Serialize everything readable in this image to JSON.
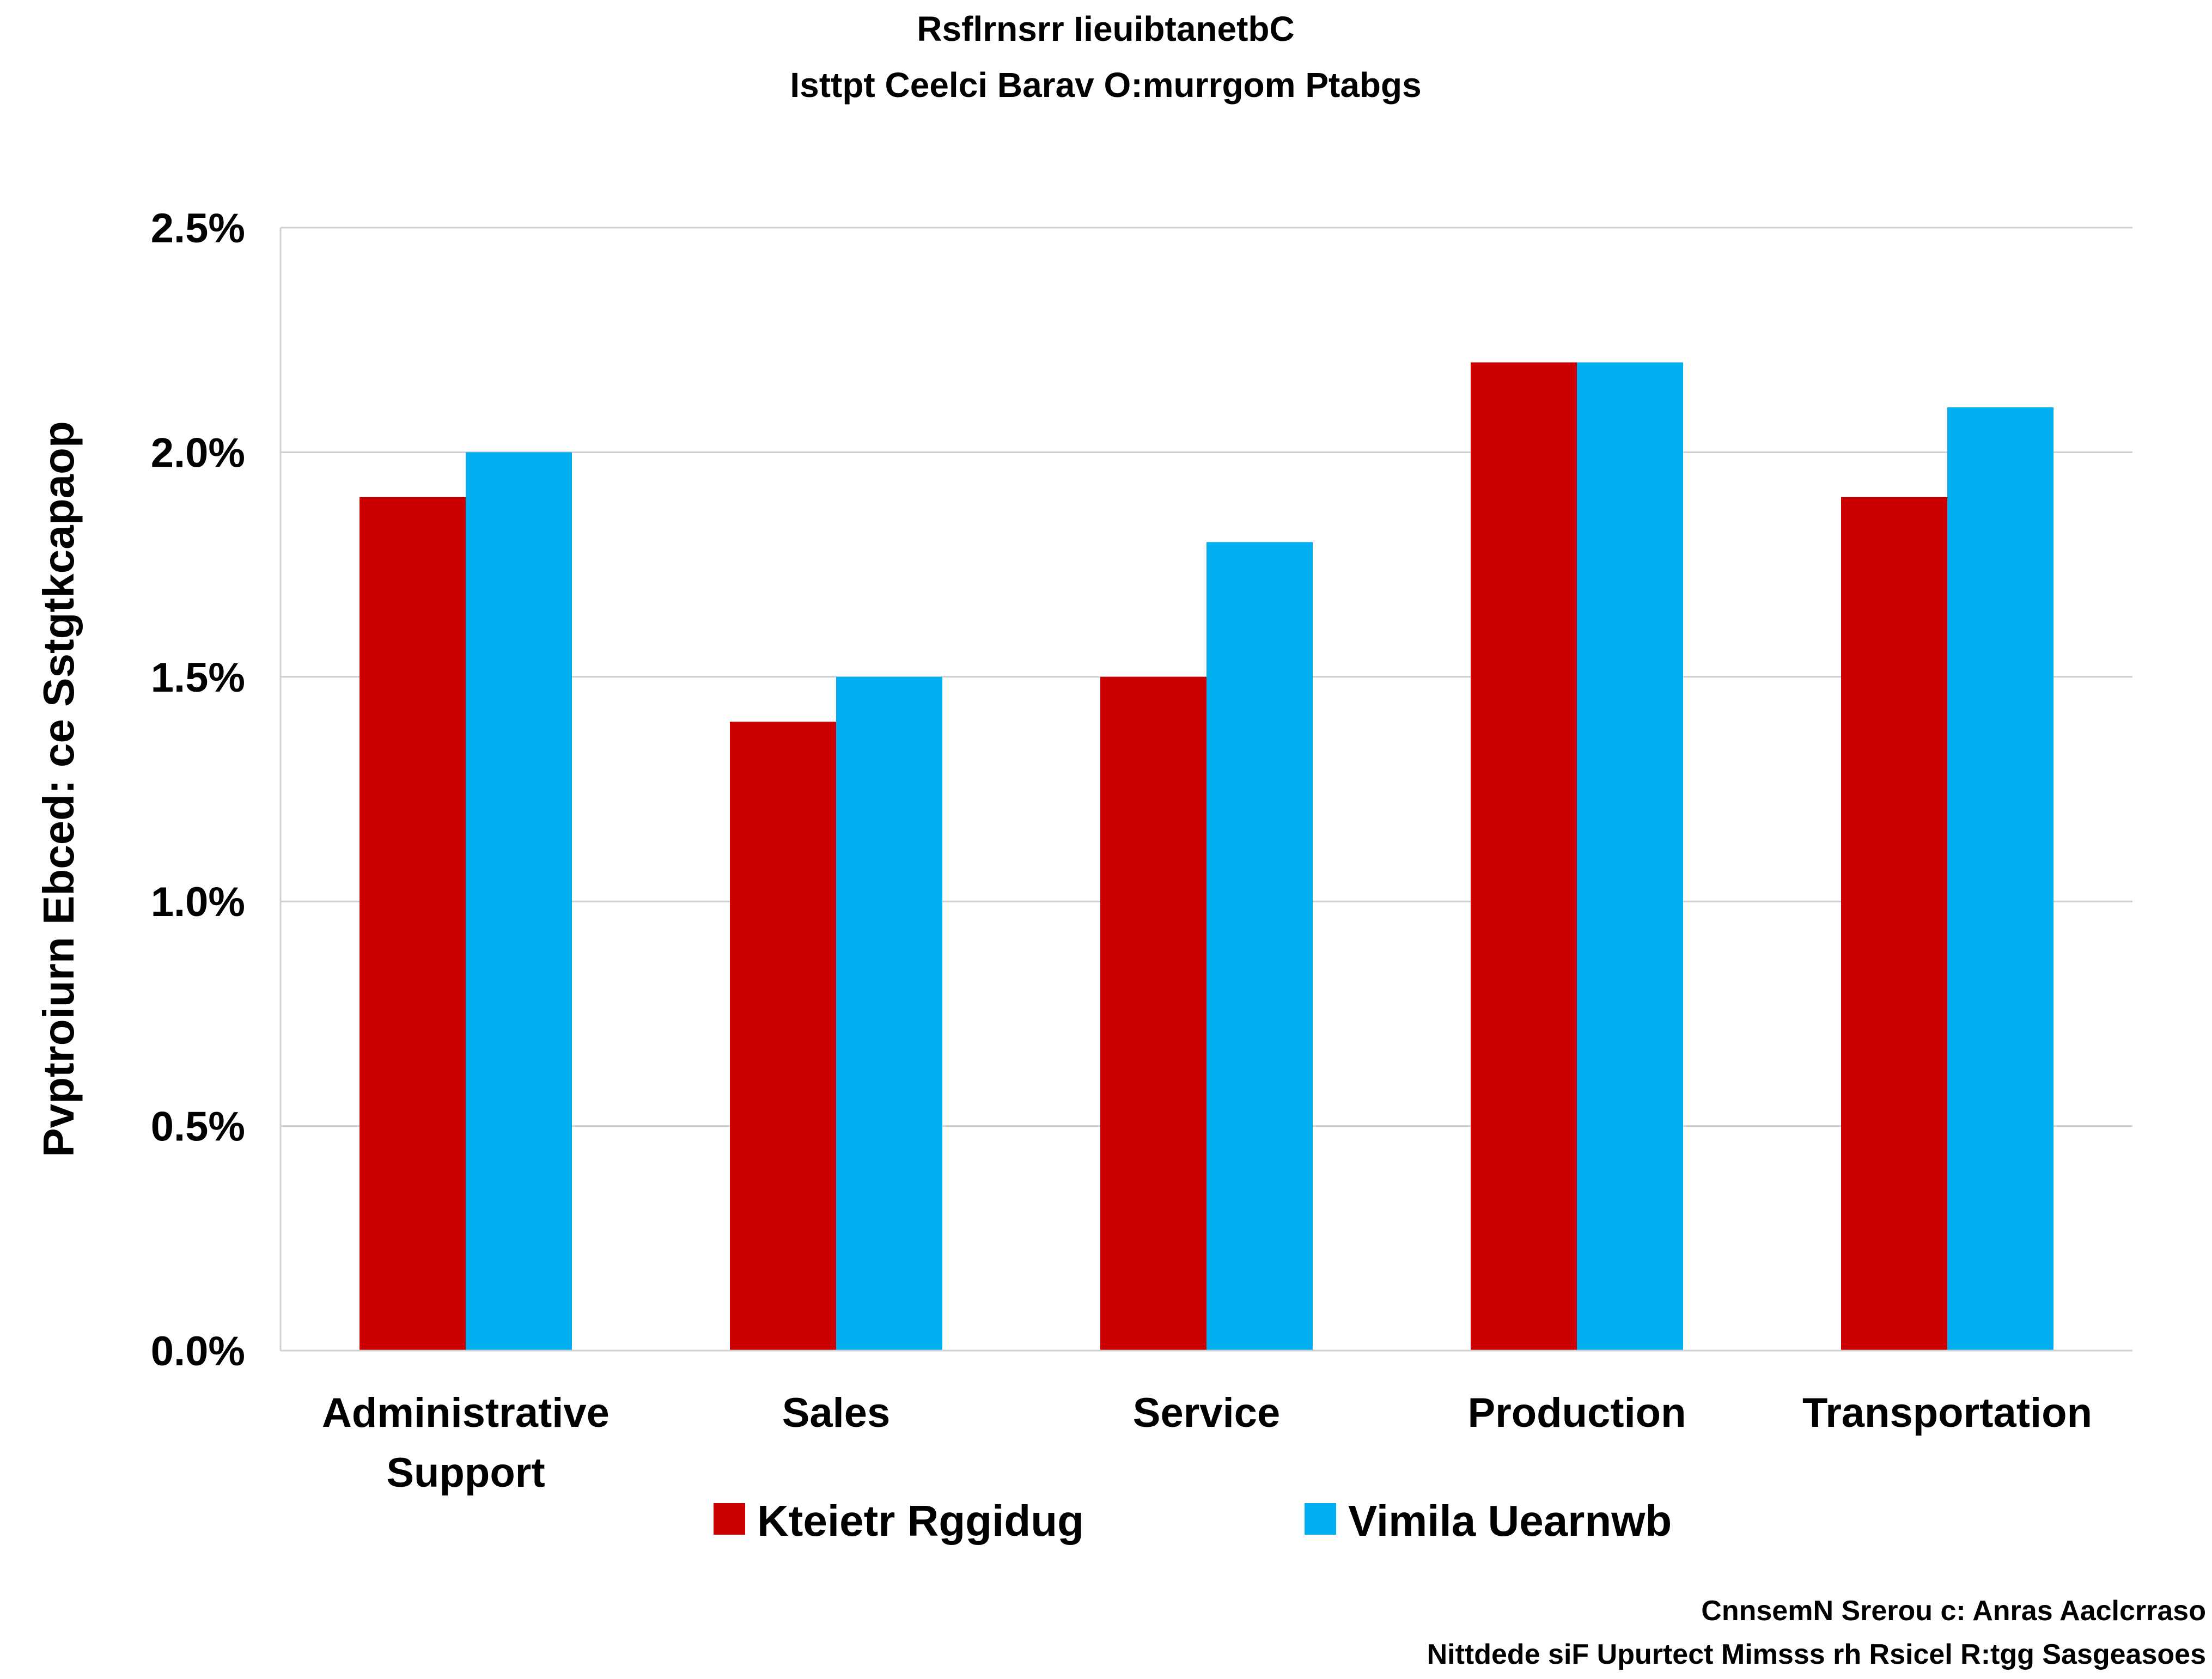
{
  "chart_data": {
    "type": "bar",
    "title": "Rsflrnsrr IieuibtanetbC",
    "subtitle": "Isttpt Ceelci Barav O:murrgom Ptabgs",
    "ylabel": "Pvptroiurn  Ebced: ce Sstgtkcapaop",
    "xlabel": "",
    "ylim": [
      0,
      0.025
    ],
    "yticks": [
      {
        "value": 0.0,
        "label": "0.0%"
      },
      {
        "value": 0.005,
        "label": "0.5%"
      },
      {
        "value": 0.01,
        "label": "1.0%"
      },
      {
        "value": 0.015,
        "label": "1.5%"
      },
      {
        "value": 0.02,
        "label": "2.0%"
      },
      {
        "value": 0.025,
        "label": "2.5%"
      }
    ],
    "categories": [
      [
        "Administrative",
        "Support"
      ],
      [
        "Sales"
      ],
      [
        "Service"
      ],
      [
        "Production"
      ],
      [
        "Transportation"
      ]
    ],
    "series": [
      {
        "name": "Kteietr Rggidug",
        "color": "#CC0000",
        "values": [
          0.019,
          0.014,
          0.015,
          0.022,
          0.019
        ]
      },
      {
        "name": "Vimila Uearnwb",
        "color": "#00B0F0",
        "values": [
          0.02,
          0.015,
          0.018,
          0.022,
          0.021
        ]
      }
    ],
    "grid": true,
    "legend_position": "bottom",
    "source_lines": [
      "CnnsemN Srerou c: Anras Aaclcrraso",
      "Nittdede siF Upurtect Mimsss rh Rsicel R:tgg Sasgeasoes"
    ]
  }
}
